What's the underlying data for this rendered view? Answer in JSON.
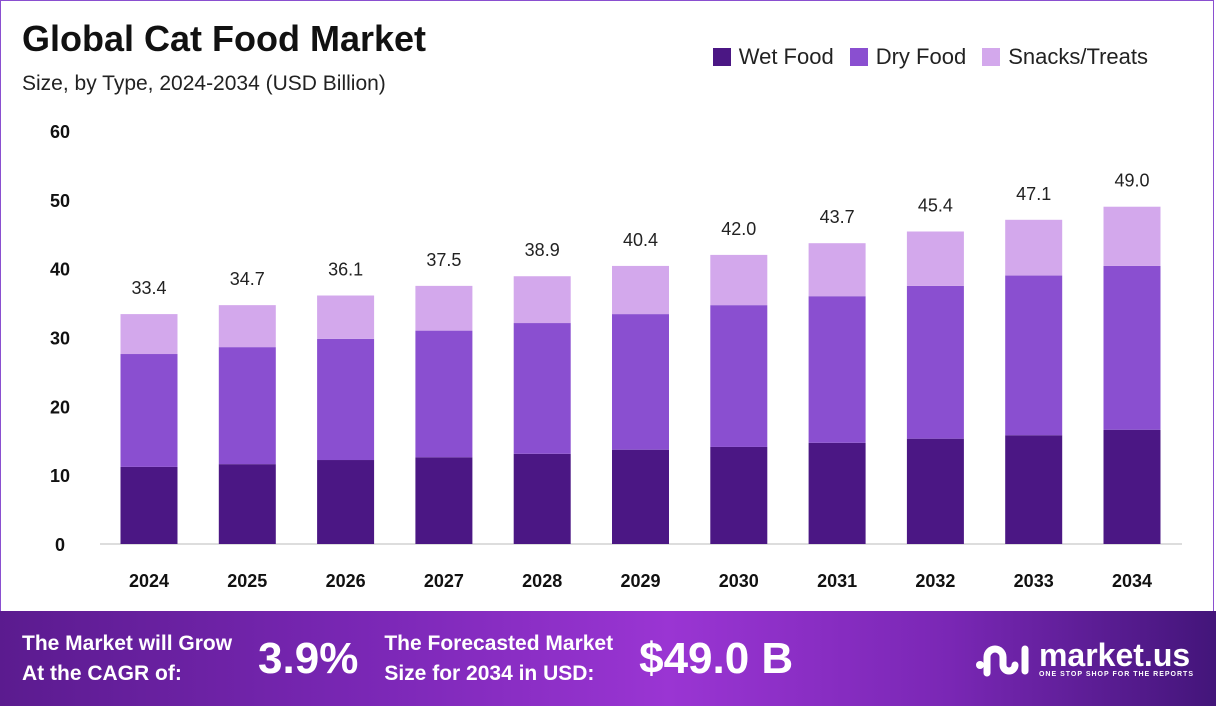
{
  "chart_data": {
    "type": "bar",
    "stacked": true,
    "title": "Global Cat Food Market",
    "subtitle": "Size, by Type, 2024-2034 (USD Billion)",
    "categories": [
      "2024",
      "2025",
      "2026",
      "2027",
      "2028",
      "2029",
      "2030",
      "2031",
      "2032",
      "2033",
      "2034"
    ],
    "series": [
      {
        "name": "Wet Food",
        "color": "#4b1784",
        "values": [
          11.2,
          11.6,
          12.2,
          12.6,
          13.1,
          13.7,
          14.1,
          14.7,
          15.3,
          15.8,
          16.6
        ]
      },
      {
        "name": "Dry Food",
        "color": "#8a4fd0",
        "values": [
          16.4,
          17.0,
          17.6,
          18.4,
          19.0,
          19.7,
          20.6,
          21.3,
          22.2,
          23.2,
          23.8
        ]
      },
      {
        "name": "Snacks/Treats",
        "color": "#d3a8ec",
        "values": [
          5.8,
          6.1,
          6.3,
          6.5,
          6.8,
          7.0,
          7.3,
          7.7,
          7.9,
          8.1,
          8.6
        ]
      }
    ],
    "totals": [
      "33.4",
      "34.7",
      "36.1",
      "37.5",
      "38.9",
      "40.4",
      "42.0",
      "43.7",
      "45.4",
      "47.1",
      "49.0"
    ],
    "yticks": [
      "0",
      "10",
      "20",
      "30",
      "40",
      "50",
      "60"
    ],
    "ylim": [
      0,
      60
    ],
    "grid": false,
    "legend": "top-right",
    "xlabel": "",
    "ylabel": ""
  },
  "footer": {
    "cagr_label_1": "The Market will Grow",
    "cagr_label_2": "At the CAGR of:",
    "cagr_value": "3.9%",
    "forecast_label_1": "The Forecasted Market",
    "forecast_label_2": "Size for 2034 in USD:",
    "forecast_value": "$49.0 B",
    "logo_name": "market.us",
    "logo_tagline": "ONE STOP SHOP FOR THE REPORTS"
  }
}
